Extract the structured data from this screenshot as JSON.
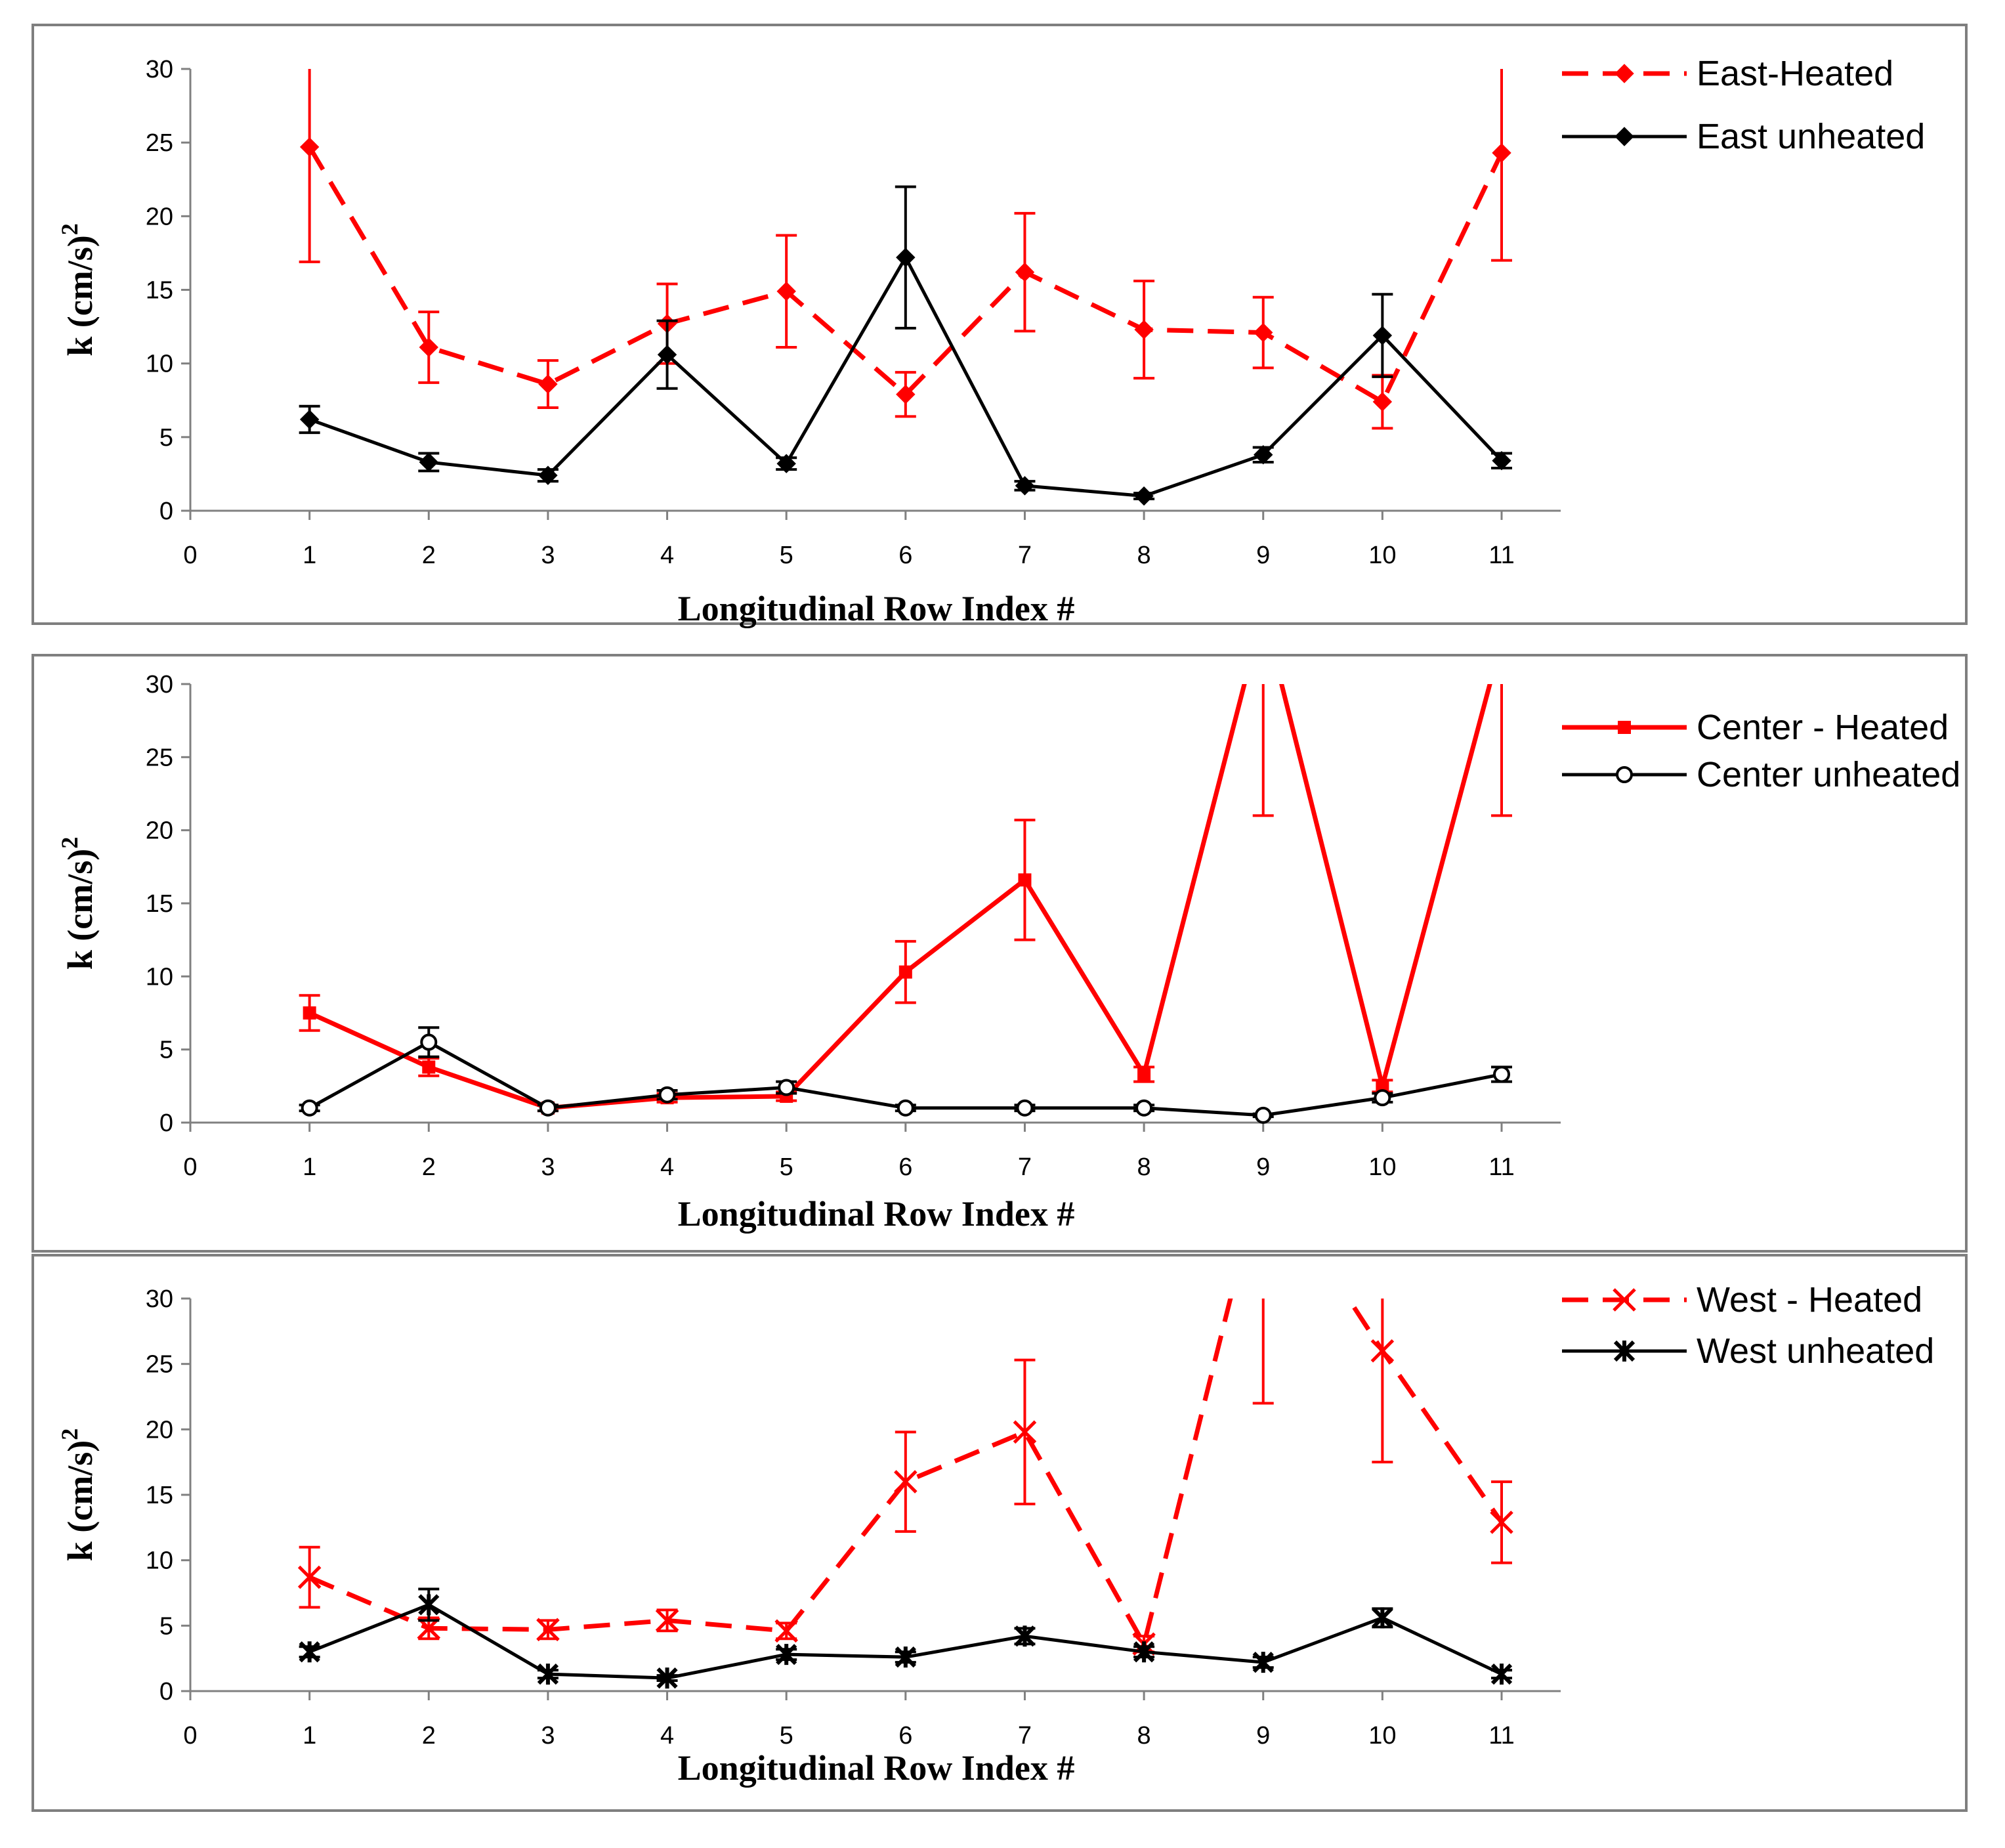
{
  "chart_data": [
    {
      "type": "line",
      "xlabel": "Longitudinal Row Index #",
      "ylabel": "k (cm/s)",
      "ylabel_superscript": "2",
      "xlim": [
        0,
        11
      ],
      "ylim": [
        0,
        30
      ],
      "x_ticks": [
        "0",
        "1",
        "2",
        "3",
        "4",
        "5",
        "6",
        "7",
        "8",
        "9",
        "10",
        "11"
      ],
      "y_ticks": [
        "0",
        "5",
        "10",
        "15",
        "20",
        "25",
        "30"
      ],
      "legend_position": "top-right",
      "series": [
        {
          "name": "East-Heated",
          "color": "#ff0000",
          "line": "dashed",
          "marker": "diamond",
          "x": [
            1,
            2,
            3,
            4,
            5,
            6,
            7,
            8,
            9,
            10,
            11
          ],
          "y": [
            24.7,
            11.1,
            8.6,
            12.7,
            14.9,
            7.9,
            16.2,
            12.3,
            12.1,
            7.4,
            24.3
          ],
          "err": [
            7.8,
            2.4,
            1.6,
            2.7,
            3.8,
            1.5,
            4.0,
            3.3,
            2.4,
            1.8,
            7.3
          ]
        },
        {
          "name": "East unheated",
          "color": "#000000",
          "line": "solid",
          "marker": "diamond",
          "x": [
            1,
            2,
            3,
            4,
            5,
            6,
            7,
            8,
            9,
            10,
            11
          ],
          "y": [
            6.2,
            3.3,
            2.4,
            10.6,
            3.2,
            17.2,
            1.7,
            1.0,
            3.8,
            11.9,
            3.4
          ],
          "err": [
            0.9,
            0.6,
            0.4,
            2.3,
            0.4,
            4.8,
            0.3,
            0.2,
            0.5,
            2.8,
            0.5
          ]
        }
      ]
    },
    {
      "type": "line",
      "xlabel": "Longitudinal Row Index #",
      "ylabel": "k (cm/s)",
      "ylabel_superscript": "2",
      "xlim": [
        0,
        11
      ],
      "ylim": [
        0,
        30
      ],
      "x_ticks": [
        "0",
        "1",
        "2",
        "3",
        "4",
        "5",
        "6",
        "7",
        "8",
        "9",
        "10",
        "11"
      ],
      "y_ticks": [
        "0",
        "5",
        "10",
        "15",
        "20",
        "25",
        "30"
      ],
      "legend_position": "top-right",
      "series": [
        {
          "name": "Center - Heated",
          "color": "#ff0000",
          "line": "solid",
          "marker": "square",
          "x": [
            1,
            2,
            3,
            4,
            5,
            6,
            7,
            8,
            9,
            10,
            11
          ],
          "y": [
            7.5,
            3.8,
            1.0,
            1.7,
            1.8,
            10.3,
            16.6,
            3.3,
            35.0,
            2.5,
            33.0
          ],
          "err": [
            1.2,
            0.6,
            0.2,
            0.3,
            0.3,
            2.1,
            4.1,
            0.5,
            14.0,
            0.4,
            12.0
          ]
        },
        {
          "name": "Center unheated",
          "color": "#000000",
          "line": "solid",
          "marker": "circle",
          "x": [
            1,
            2,
            3,
            4,
            5,
            6,
            7,
            8,
            9,
            10,
            11
          ],
          "y": [
            1.0,
            5.5,
            1.0,
            1.9,
            2.4,
            1.0,
            1.0,
            1.0,
            0.5,
            1.7,
            3.3
          ],
          "err": [
            0.2,
            1.0,
            0.2,
            0.3,
            0.4,
            0.2,
            0.2,
            0.2,
            0.1,
            0.3,
            0.5
          ]
        }
      ]
    },
    {
      "type": "line",
      "xlabel": "Longitudinal Row Index #",
      "ylabel": "k (cm/s)",
      "ylabel_superscript": "2",
      "xlim": [
        0,
        11
      ],
      "ylim": [
        0,
        30
      ],
      "x_ticks": [
        "0",
        "1",
        "2",
        "3",
        "4",
        "5",
        "6",
        "7",
        "8",
        "9",
        "10",
        "11"
      ],
      "y_ticks": [
        "0",
        "5",
        "10",
        "15",
        "20",
        "25",
        "30"
      ],
      "legend_position": "top-right",
      "series": [
        {
          "name": "West - Heated",
          "color": "#ff0000",
          "line": "dashed",
          "marker": "x",
          "x": [
            1,
            2,
            3,
            4,
            5,
            6,
            7,
            8,
            9,
            10,
            11
          ],
          "y": [
            8.7,
            4.8,
            4.7,
            5.4,
            4.6,
            16.0,
            19.8,
            3.6,
            40.0,
            26.0,
            12.9
          ],
          "err": [
            2.3,
            0.8,
            0.7,
            0.8,
            0.6,
            3.8,
            5.5,
            0.6,
            18.0,
            8.5,
            3.1
          ]
        },
        {
          "name": "West unheated",
          "color": "#000000",
          "line": "solid",
          "marker": "star",
          "x": [
            1,
            2,
            3,
            4,
            5,
            6,
            7,
            8,
            9,
            10,
            11
          ],
          "y": [
            3.0,
            6.6,
            1.3,
            1.0,
            2.8,
            2.6,
            4.2,
            3.0,
            2.2,
            5.6,
            1.3
          ],
          "err": [
            0.4,
            1.2,
            0.3,
            0.2,
            0.4,
            0.4,
            0.6,
            0.4,
            0.4,
            0.7,
            0.3
          ]
        }
      ]
    }
  ]
}
